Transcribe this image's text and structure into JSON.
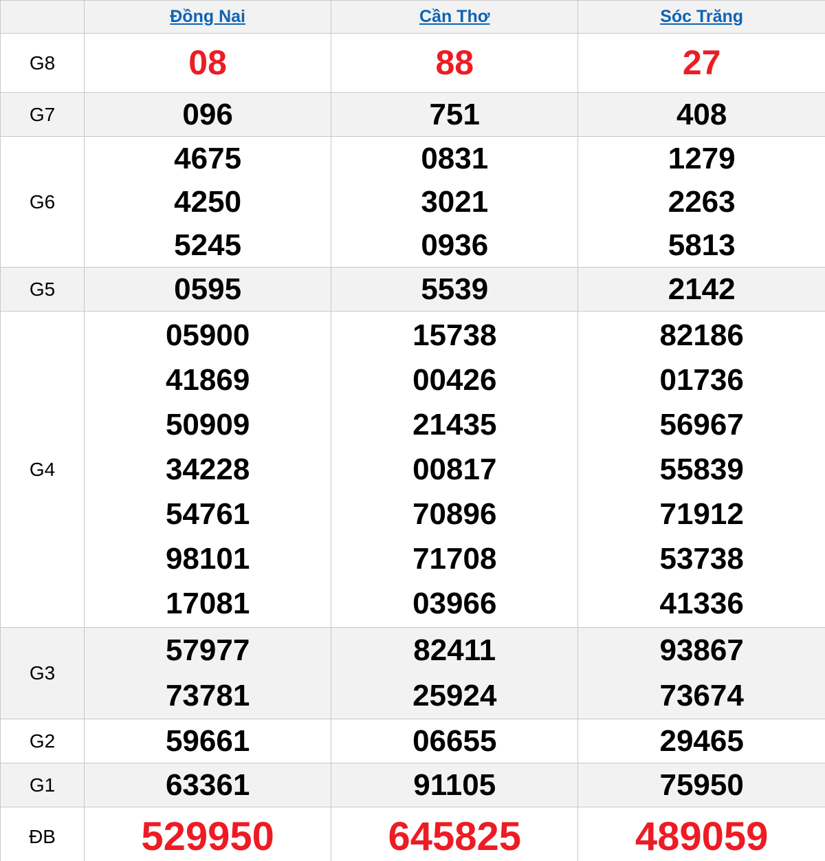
{
  "header": {
    "corner_label": "",
    "provinces": [
      {
        "label": "Đồng Nai"
      },
      {
        "label": "Cần Thơ"
      },
      {
        "label": "Sóc Trăng"
      }
    ]
  },
  "prizes": [
    {
      "label": "G8",
      "highlight": true,
      "values": [
        [
          "08"
        ],
        [
          "88"
        ],
        [
          "27"
        ]
      ]
    },
    {
      "label": "G7",
      "highlight": false,
      "values": [
        [
          "096"
        ],
        [
          "751"
        ],
        [
          "408"
        ]
      ]
    },
    {
      "label": "G6",
      "highlight": false,
      "values": [
        [
          "4675",
          "4250",
          "5245"
        ],
        [
          "0831",
          "3021",
          "0936"
        ],
        [
          "1279",
          "2263",
          "5813"
        ]
      ]
    },
    {
      "label": "G5",
      "highlight": false,
      "values": [
        [
          "0595"
        ],
        [
          "5539"
        ],
        [
          "2142"
        ]
      ]
    },
    {
      "label": "G4",
      "highlight": false,
      "values": [
        [
          "05900",
          "41869",
          "50909",
          "34228",
          "54761",
          "98101",
          "17081"
        ],
        [
          "15738",
          "00426",
          "21435",
          "00817",
          "70896",
          "71708",
          "03966"
        ],
        [
          "82186",
          "01736",
          "56967",
          "55839",
          "71912",
          "53738",
          "41336"
        ]
      ]
    },
    {
      "label": "G3",
      "highlight": false,
      "values": [
        [
          "57977",
          "73781"
        ],
        [
          "82411",
          "25924"
        ],
        [
          "93867",
          "73674"
        ]
      ]
    },
    {
      "label": "G2",
      "highlight": false,
      "values": [
        [
          "59661"
        ],
        [
          "06655"
        ],
        [
          "29465"
        ]
      ]
    },
    {
      "label": "G1",
      "highlight": false,
      "values": [
        [
          "63361"
        ],
        [
          "91105"
        ],
        [
          "75950"
        ]
      ]
    },
    {
      "label": "ĐB",
      "highlight": true,
      "values": [
        [
          "529950"
        ],
        [
          "645825"
        ],
        [
          "489059"
        ]
      ]
    }
  ],
  "colors": {
    "highlight_red": "#ed1c24",
    "link_blue": "#0e64b4",
    "stripe_gray": "#f2f2f2",
    "border_gray": "#c9c9c9"
  }
}
